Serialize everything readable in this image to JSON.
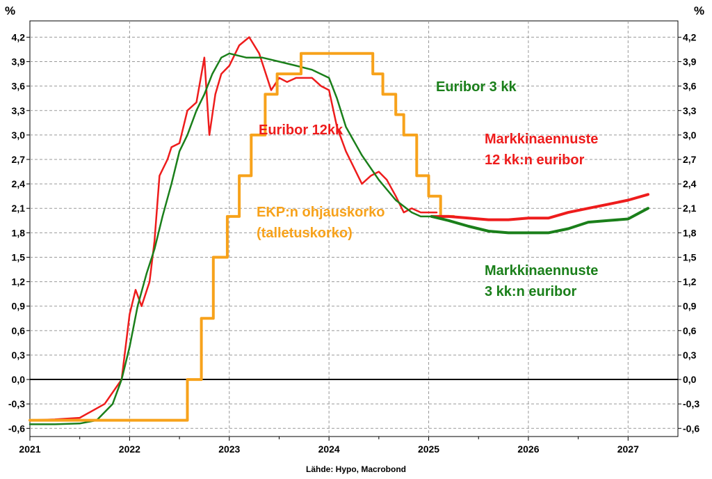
{
  "chart_data": {
    "type": "line",
    "unit_left": "%",
    "unit_right": "%",
    "source": "Lähde: Hypo, Macrobond",
    "ylim": [
      -0.7,
      4.4
    ],
    "yticks": [
      "4,2",
      "3,9",
      "3,6",
      "3,3",
      "3,0",
      "2,7",
      "2,4",
      "2,1",
      "1,8",
      "1,5",
      "1,2",
      "0,9",
      "0,6",
      "0,3",
      "0,0",
      "-0,3",
      "-0,6"
    ],
    "xlim": [
      2021.0,
      2027.5
    ],
    "xticks": [
      "2021",
      "2022",
      "2023",
      "2024",
      "2025",
      "2026",
      "2027"
    ],
    "grid": true,
    "zero_line": true,
    "annotations": {
      "euribor3": "Euribor 3 kk",
      "euribor12": "Euribor 12kk",
      "ekp_line1": "EKP:n ohjauskorko",
      "ekp_line2": "(talletuskorko)",
      "fc12_line1": "Markkinaennuste",
      "fc12_line2": "12 kk:n euribor",
      "fc3_line1": "Markkinaennuste",
      "fc3_line2": "3 kk:n euribor"
    },
    "colors": {
      "euribor12": "#ee1c1c",
      "euribor3": "#1a7f1a",
      "ekp": "#f7a21b",
      "zero": "#000000"
    },
    "series": [
      {
        "name": "Euribor 12kk",
        "color": "#ee1c1c",
        "x": [
          2021.0,
          2021.25,
          2021.5,
          2021.75,
          2021.92,
          2022.0,
          2022.06,
          2022.12,
          2022.2,
          2022.25,
          2022.3,
          2022.38,
          2022.42,
          2022.5,
          2022.58,
          2022.67,
          2022.75,
          2022.8,
          2022.86,
          2022.92,
          2023.0,
          2023.1,
          2023.2,
          2023.3,
          2023.42,
          2023.5,
          2023.58,
          2023.67,
          2023.75,
          2023.83,
          2023.92,
          2024.0,
          2024.08,
          2024.17,
          2024.25,
          2024.33,
          2024.42,
          2024.5,
          2024.58,
          2024.67,
          2024.75,
          2024.83,
          2024.92,
          2025.0,
          2025.08
        ],
        "y": [
          -0.5,
          -0.49,
          -0.47,
          -0.3,
          0.0,
          0.8,
          1.1,
          0.9,
          1.2,
          1.7,
          2.5,
          2.7,
          2.85,
          2.9,
          3.3,
          3.4,
          3.95,
          3.0,
          3.5,
          3.75,
          3.85,
          4.1,
          4.2,
          4.0,
          3.55,
          3.7,
          3.65,
          3.7,
          3.7,
          3.7,
          3.6,
          3.55,
          3.1,
          2.8,
          2.6,
          2.4,
          2.5,
          2.55,
          2.45,
          2.25,
          2.05,
          2.1,
          2.05,
          2.05,
          2.05
        ]
      },
      {
        "name": "Euribor 3 kk",
        "color": "#1a7f1a",
        "x": [
          2021.0,
          2021.25,
          2021.5,
          2021.67,
          2021.83,
          2021.92,
          2022.0,
          2022.08,
          2022.17,
          2022.25,
          2022.33,
          2022.42,
          2022.5,
          2022.58,
          2022.67,
          2022.75,
          2022.83,
          2022.92,
          2023.0,
          2023.17,
          2023.33,
          2023.5,
          2023.67,
          2023.83,
          2024.0,
          2024.08,
          2024.17,
          2024.33,
          2024.5,
          2024.67,
          2024.83,
          2024.92,
          2025.0,
          2025.03
        ],
        "y": [
          -0.55,
          -0.55,
          -0.54,
          -0.5,
          -0.3,
          0.0,
          0.4,
          0.9,
          1.3,
          1.6,
          2.0,
          2.4,
          2.8,
          3.0,
          3.3,
          3.5,
          3.75,
          3.95,
          4.0,
          3.95,
          3.95,
          3.9,
          3.85,
          3.8,
          3.7,
          3.45,
          3.1,
          2.75,
          2.45,
          2.2,
          2.05,
          2.0,
          2.0,
          2.0
        ]
      },
      {
        "name": "EKP:n ohjauskorko (talletuskorko)",
        "color": "#f7a21b",
        "x": [
          2021.0,
          2022.58,
          2022.58,
          2022.72,
          2022.72,
          2022.84,
          2022.84,
          2022.98,
          2022.98,
          2023.1,
          2023.1,
          2023.22,
          2023.22,
          2023.36,
          2023.36,
          2023.48,
          2023.48,
          2023.72,
          2023.72,
          2024.44,
          2024.44,
          2024.54,
          2024.54,
          2024.67,
          2024.67,
          2024.75,
          2024.75,
          2024.88,
          2024.88,
          2025.0,
          2025.0,
          2025.12,
          2025.12,
          2025.25
        ],
        "y": [
          -0.5,
          -0.5,
          0.0,
          0.0,
          0.75,
          0.75,
          1.5,
          1.5,
          2.0,
          2.0,
          2.5,
          2.5,
          3.0,
          3.0,
          3.5,
          3.5,
          3.75,
          3.75,
          4.0,
          4.0,
          3.75,
          3.75,
          3.5,
          3.5,
          3.25,
          3.25,
          3.0,
          3.0,
          2.5,
          2.5,
          2.25,
          2.25,
          2.0,
          2.0
        ]
      },
      {
        "name": "Markkinaennuste 12 kk:n euribor",
        "color": "#ee1c1c",
        "x": [
          2025.03,
          2025.2,
          2025.4,
          2025.6,
          2025.8,
          2026.0,
          2026.2,
          2026.4,
          2026.6,
          2026.8,
          2027.0,
          2027.2
        ],
        "y": [
          2.0,
          2.0,
          1.98,
          1.96,
          1.96,
          1.98,
          1.98,
          2.05,
          2.1,
          2.15,
          2.2,
          2.27
        ]
      },
      {
        "name": "Markkinaennuste 3 kk:n euribor",
        "color": "#1a7f1a",
        "x": [
          2025.03,
          2025.2,
          2025.4,
          2025.6,
          2025.8,
          2026.0,
          2026.2,
          2026.4,
          2026.6,
          2026.8,
          2027.0,
          2027.2
        ],
        "y": [
          2.0,
          1.95,
          1.88,
          1.82,
          1.8,
          1.8,
          1.8,
          1.85,
          1.93,
          1.95,
          1.97,
          2.1
        ]
      }
    ]
  }
}
